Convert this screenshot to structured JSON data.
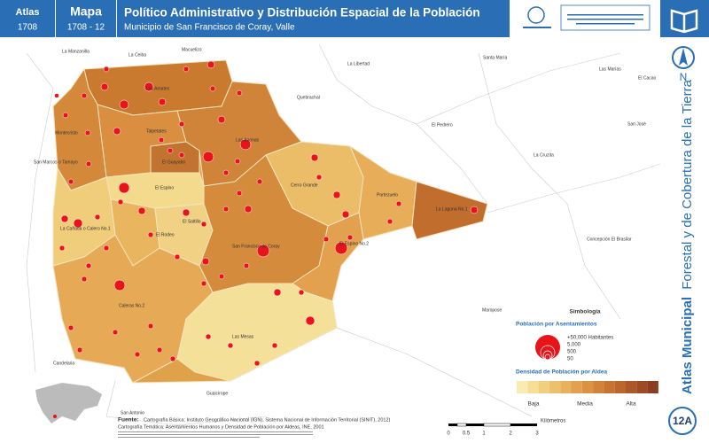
{
  "header": {
    "atlas_label": "Atlas",
    "atlas_number": "1708",
    "map_label": "Mapa",
    "map_number": "1708 - 12",
    "title": "Político Administrativo y Distribución Espacial de la Población",
    "subtitle": "Municipio de San Francisco de Coray, Valle"
  },
  "sidebar": {
    "north": "N",
    "vertical_title_bold": "Atlas Municipal",
    "vertical_title": "Forestal y de Cobertura de la Tierra",
    "sheet": "12A"
  },
  "place_labels": [
    "La Manzanilla",
    "La Ceiba",
    "Macuelizo",
    "La Libertad",
    "Santa María",
    "Las Marías",
    "El Cacao",
    "Quebrachal",
    "El Pedrero",
    "San José",
    "La Cruzita",
    "Montecristo",
    "Talpetates",
    "Los Amates",
    "Las Anonas",
    "El Guayabo",
    "San Marcos o Tamayo",
    "Cerro Grande",
    "Portezuelo",
    "La Laguna No.1",
    "El Espino",
    "El Saltillo",
    "La Cañada o Calero No.1",
    "El Rodeo",
    "San Francisco de Coray",
    "El Espino No.2",
    "Concepción El Brasilar",
    "Caleras No.2",
    "Las Mesas",
    "Maropose",
    "Candelaria",
    "Guaicirope",
    "San Antonio"
  ],
  "legend": {
    "title": "Simbología",
    "population_title": "Población por Asentamientos",
    "population_classes": [
      "+50,000 Habitantes",
      "5,000",
      "500",
      "50"
    ],
    "density_title": "Densidad de Población por Aldea",
    "density_classes": [
      "Baja",
      "Media",
      "Alta"
    ]
  },
  "scale": {
    "ticks": [
      "0",
      "0.5",
      "1",
      "2",
      "3"
    ],
    "unit": "Kilómetros"
  },
  "source": {
    "label": "Fuente:",
    "lines": [
      "Cartografía Básica: Instituto Geográfico Nacional (IGN), Sistema Nacional de Información Territorial (SINIT), 2012)",
      "Cartografía Temática: Asentamientos Humanos y Densidad de Población por Aldeas, INE, 2001"
    ]
  }
}
